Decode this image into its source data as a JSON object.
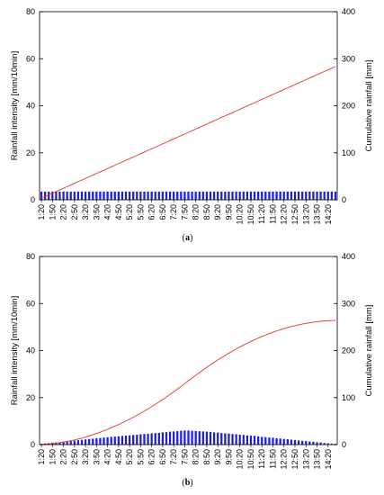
{
  "chart_data": [
    {
      "type": "bar",
      "panel_label": "a",
      "y_left_label": "Rainfall intensity [mm/10min]",
      "y_right_label": "Cumulative rainfall [mm]",
      "y_left_lim": [
        0,
        80
      ],
      "y_right_lim": [
        0,
        400
      ],
      "y_left_ticks": [
        "0",
        "20",
        "40",
        "60",
        "80"
      ],
      "y_right_ticks": [
        "0",
        "100",
        "200",
        "300",
        "400"
      ],
      "tick_labels": [
        "1:20",
        "1:50",
        "2:20",
        "2:50",
        "3:20",
        "3:50",
        "4:20",
        "4:50",
        "5:20",
        "5:50",
        "6:20",
        "6:50",
        "7:20",
        "7:50",
        "8:20",
        "8:50",
        "9:20",
        "9:50",
        "10:20",
        "10:50",
        "11:20",
        "11:50",
        "12:20",
        "12:50",
        "13:20",
        "13:50",
        "14:20"
      ],
      "start_time": "1:20",
      "interval_min": 10,
      "series": [
        {
          "kind": "bar",
          "axis": "left",
          "color": "#1f1fd6",
          "values": [
            3.5,
            3.5,
            3.5,
            3.5,
            3.5,
            3.5,
            3.5,
            3.5,
            3.5,
            3.5,
            3.5,
            3.5,
            3.5,
            3.5,
            3.5,
            3.5,
            3.5,
            3.5,
            3.5,
            3.5,
            3.5,
            3.5,
            3.5,
            3.5,
            3.5,
            3.5,
            3.5,
            3.5,
            3.5,
            3.5,
            3.5,
            3.5,
            3.5,
            3.5,
            3.5,
            3.5,
            3.5,
            3.5,
            3.5,
            3.5,
            3.5,
            3.5,
            3.5,
            3.5,
            3.5,
            3.5,
            3.5,
            3.5,
            3.5,
            3.5,
            3.5,
            3.5,
            3.5,
            3.5,
            3.5,
            3.5,
            3.5,
            3.5,
            3.5,
            3.5,
            3.5,
            3.5,
            3.5,
            3.5,
            3.5,
            3.5,
            3.5,
            3.5,
            3.5,
            3.5,
            3.5,
            3.5,
            3.5,
            3.5,
            3.5,
            3.5,
            3.5,
            3.5,
            3.5,
            3.5,
            3.5
          ]
        },
        {
          "kind": "line",
          "axis": "right",
          "color": "#e8342a",
          "values": [
            3.5,
            7,
            10.5,
            14,
            17.5,
            21,
            24.5,
            28,
            31.5,
            35,
            38.5,
            42,
            45.5,
            49,
            52.5,
            56,
            59.5,
            63,
            66.5,
            70,
            73.5,
            77,
            80.5,
            84,
            87.5,
            91,
            94.5,
            98,
            101.5,
            105,
            108.5,
            112,
            115.5,
            119,
            122.5,
            126,
            129.5,
            133,
            136.5,
            140,
            143.5,
            147,
            150.5,
            154,
            157.5,
            161,
            164.5,
            168,
            171.5,
            175,
            178.5,
            182,
            185.5,
            189,
            192.5,
            196,
            199.5,
            203,
            206.5,
            210,
            213.5,
            217,
            220.5,
            224,
            227.5,
            231,
            234.5,
            238,
            241.5,
            245,
            248.5,
            252,
            255.5,
            259,
            262.5,
            266,
            269.5,
            273,
            276.5,
            280,
            283.5
          ]
        }
      ]
    },
    {
      "type": "bar",
      "panel_label": "b",
      "y_left_label": "Rainfall intensity [mm/10min]",
      "y_right_label": "Cumulative rainfall [mm]",
      "y_left_lim": [
        0,
        80
      ],
      "y_right_lim": [
        0,
        400
      ],
      "y_left_ticks": [
        "0",
        "20",
        "40",
        "60",
        "80"
      ],
      "y_right_ticks": [
        "0",
        "100",
        "200",
        "300",
        "400"
      ],
      "tick_labels": [
        "1:20",
        "1:50",
        "2:20",
        "2:50",
        "3:20",
        "3:50",
        "4:20",
        "4:50",
        "5:20",
        "5:50",
        "6:20",
        "6:50",
        "7:20",
        "7:50",
        "8:20",
        "8:50",
        "9:20",
        "9:50",
        "10:20",
        "10:50",
        "11:20",
        "11:50",
        "12:20",
        "12:50",
        "13:20",
        "13:50",
        "14:20"
      ],
      "start_time": "1:20",
      "interval_min": 10,
      "series": [
        {
          "kind": "bar",
          "axis": "left",
          "color": "#1f1fd6",
          "values": [
            0.3,
            0.5,
            0.6,
            0.8,
            0.9,
            1.0,
            1.2,
            1.4,
            1.5,
            1.7,
            1.9,
            2.0,
            2.2,
            2.4,
            2.5,
            2.7,
            2.8,
            3.0,
            3.1,
            3.3,
            3.4,
            3.5,
            3.7,
            3.8,
            3.9,
            4.1,
            4.2,
            4.4,
            4.5,
            4.6,
            4.8,
            4.9,
            5.0,
            5.2,
            5.3,
            5.5,
            5.6,
            5.7,
            5.9,
            6.0,
            6.0,
            5.9,
            5.8,
            5.7,
            5.6,
            5.5,
            5.4,
            5.2,
            5.1,
            4.9,
            4.8,
            4.7,
            4.5,
            4.4,
            4.2,
            4.1,
            3.9,
            3.8,
            3.7,
            3.5,
            3.3,
            3.2,
            3.0,
            2.9,
            2.7,
            2.6,
            2.4,
            2.3,
            2.1,
            1.9,
            1.8,
            1.6,
            1.5,
            1.3,
            1.2,
            1.0,
            0.9,
            0.7,
            0.5,
            0.4,
            0.3
          ]
        },
        {
          "kind": "line",
          "axis": "right",
          "color": "#e8342a",
          "values": [
            0.3,
            0.8,
            1.4,
            2.2,
            3.1,
            4.1,
            5.3,
            6.7,
            8.2,
            9.9,
            11.8,
            13.8,
            16.0,
            18.4,
            20.9,
            23.6,
            26.4,
            29.4,
            32.5,
            35.8,
            39.2,
            42.7,
            46.4,
            50.2,
            54.1,
            58.2,
            62.4,
            66.8,
            71.3,
            75.9,
            80.7,
            85.6,
            90.6,
            95.8,
            101.1,
            106.6,
            112.2,
            117.9,
            123.8,
            129.8,
            135.8,
            141.7,
            147.5,
            153.2,
            158.8,
            164.3,
            169.7,
            174.9,
            180.0,
            184.9,
            189.7,
            194.4,
            198.9,
            203.3,
            207.5,
            211.6,
            215.5,
            219.3,
            223.0,
            226.5,
            229.8,
            233.0,
            236.0,
            238.9,
            241.6,
            244.2,
            246.6,
            248.9,
            251.0,
            252.9,
            254.7,
            256.3,
            257.8,
            259.1,
            260.3,
            261.3,
            262.2,
            262.9,
            263.4,
            263.8,
            264.1
          ]
        }
      ]
    }
  ]
}
